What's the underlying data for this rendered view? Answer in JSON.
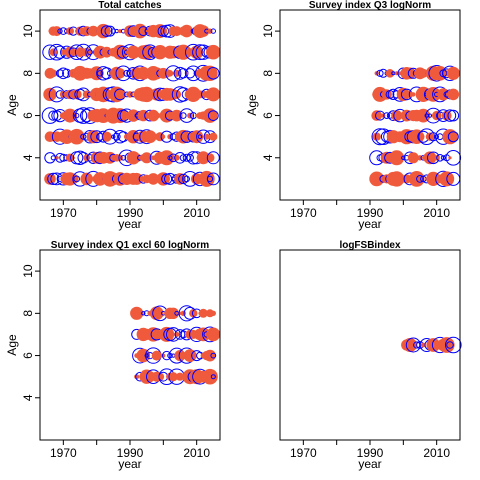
{
  "figure": {
    "colors": {
      "positive": "#f05a3c",
      "negative": "#0000ff",
      "frame": "#000000"
    },
    "legend": "none"
  },
  "chart_data": [
    {
      "type": "scatter",
      "title": "Total catches",
      "xlabel": "year",
      "ylabel": "Age",
      "xlim": [
        1963,
        2017
      ],
      "ylim": [
        2,
        11
      ],
      "xticks": [
        1970,
        1990,
        2010
      ],
      "yticks": [
        4,
        6,
        8,
        10
      ],
      "ages": [
        3,
        4,
        5,
        6,
        7,
        8,
        9,
        10
      ],
      "year_range": [
        1966,
        2015
      ],
      "grid": false
    },
    {
      "type": "scatter",
      "title": "Survey index Q3 logNorm",
      "xlabel": "year",
      "ylabel": "Age",
      "xlim": [
        1963,
        2017
      ],
      "ylim": [
        2,
        11
      ],
      "xticks": [
        1970,
        1990,
        2010
      ],
      "yticks": [
        4,
        6,
        8,
        10
      ],
      "ages": [
        3,
        4,
        5,
        6,
        7,
        8
      ],
      "year_range": [
        1992,
        2015
      ],
      "grid": false
    },
    {
      "type": "scatter",
      "title": "Survey index Q1 excl 60 logNorm",
      "xlabel": "year",
      "ylabel": "Age",
      "xlim": [
        1963,
        2017
      ],
      "ylim": [
        2,
        11
      ],
      "xticks": [
        1970,
        1990,
        2010
      ],
      "yticks": [
        4,
        6,
        8,
        10
      ],
      "ages": [
        5,
        6,
        7,
        8
      ],
      "year_range": [
        1992,
        2015
      ],
      "grid": false
    },
    {
      "type": "scatter",
      "title": "logFSBindex",
      "xlabel": "year",
      "ylabel": "",
      "xlim": [
        1963,
        2017
      ],
      "ylim": [
        2,
        11
      ],
      "xticks": [
        1970,
        1990,
        2010
      ],
      "yticks": [],
      "ages": [
        6.5
      ],
      "year_range": [
        2001,
        2015
      ],
      "grid": false
    }
  ]
}
